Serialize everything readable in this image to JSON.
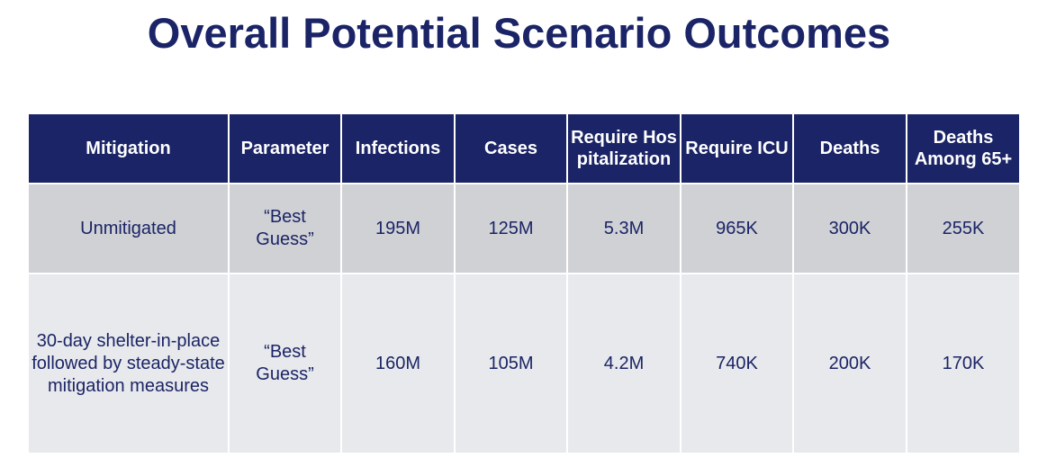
{
  "title": "Overall Potential Scenario Outcomes",
  "table": {
    "headers": [
      {
        "label": "Mitigation"
      },
      {
        "label": "Parameter"
      },
      {
        "label": "Infections"
      },
      {
        "label": "Cases"
      },
      {
        "label": "Require Hospitalization"
      },
      {
        "label": "Require ICU"
      },
      {
        "label": "Deaths"
      },
      {
        "label": "Deaths Among 65+"
      }
    ],
    "rows": [
      {
        "mitigation": "Unmitigated",
        "parameter": "“Best Guess”",
        "infections": "195M",
        "cases": "125M",
        "hospitalization": "5.3M",
        "icu": "965K",
        "deaths": "300K",
        "deaths_65": "255K"
      },
      {
        "mitigation": "30-day shelter-in-place followed by steady-state mitigation measures",
        "parameter": "“Best Guess”",
        "infections": "160M",
        "cases": "105M",
        "hospitalization": "4.2M",
        "icu": "740K",
        "deaths": "200K",
        "deaths_65": "170K"
      }
    ]
  }
}
